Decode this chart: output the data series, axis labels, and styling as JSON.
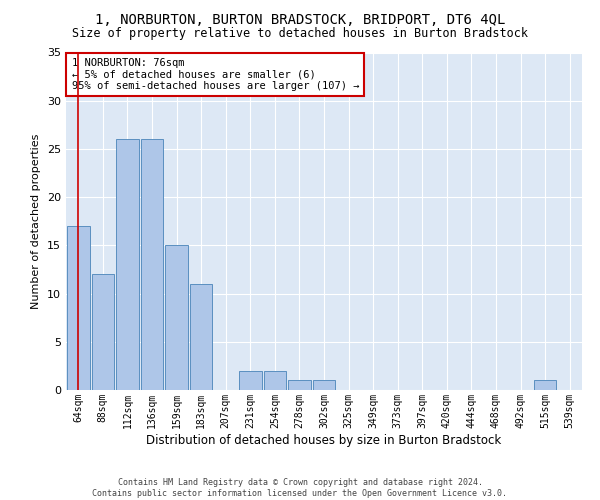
{
  "title": "1, NORBURTON, BURTON BRADSTOCK, BRIDPORT, DT6 4QL",
  "subtitle": "Size of property relative to detached houses in Burton Bradstock",
  "xlabel": "Distribution of detached houses by size in Burton Bradstock",
  "ylabel": "Number of detached properties",
  "categories": [
    "64sqm",
    "88sqm",
    "112sqm",
    "136sqm",
    "159sqm",
    "183sqm",
    "207sqm",
    "231sqm",
    "254sqm",
    "278sqm",
    "302sqm",
    "325sqm",
    "349sqm",
    "373sqm",
    "397sqm",
    "420sqm",
    "444sqm",
    "468sqm",
    "492sqm",
    "515sqm",
    "539sqm"
  ],
  "values": [
    17,
    12,
    26,
    26,
    15,
    11,
    0,
    2,
    2,
    1,
    1,
    0,
    0,
    0,
    0,
    0,
    0,
    0,
    0,
    1,
    0
  ],
  "bar_color": "#aec6e8",
  "bar_edge_color": "#5a8fc0",
  "background_color": "#dde8f5",
  "grid_color": "#ffffff",
  "vline_x": 0,
  "vline_color": "#cc0000",
  "annotation_lines": [
    "1 NORBURTON: 76sqm",
    "← 5% of detached houses are smaller (6)",
    "95% of semi-detached houses are larger (107) →"
  ],
  "annotation_box_color": "#cc0000",
  "ylim": [
    0,
    35
  ],
  "yticks": [
    0,
    5,
    10,
    15,
    20,
    25,
    30,
    35
  ],
  "footer_line1": "Contains HM Land Registry data © Crown copyright and database right 2024.",
  "footer_line2": "Contains public sector information licensed under the Open Government Licence v3.0.",
  "title_fontsize": 10,
  "subtitle_fontsize": 8.5,
  "ylabel_fontsize": 8,
  "xlabel_fontsize": 8.5,
  "tick_fontsize": 7,
  "ann_fontsize": 7.5,
  "footer_fontsize": 6
}
